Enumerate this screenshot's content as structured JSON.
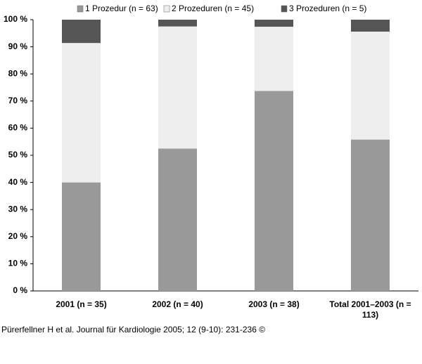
{
  "chart_data": {
    "type": "stacked_bar",
    "categories": [
      "2001 (n = 35)",
      "2002 (n = 40)",
      "2003 (n = 38)",
      "Total 2001–2003 (n = 113)"
    ],
    "series": [
      {
        "name": "1 Prozedur (n = 63)",
        "color": "#999999",
        "values": [
          40,
          52.5,
          73.7,
          55.8
        ]
      },
      {
        "name": "2 Prozeduren (n = 45)",
        "color": "#eeeeee",
        "values": [
          51.4,
          45,
          23.7,
          39.8
        ]
      },
      {
        "name": "3 Prozeduren (n = 5)",
        "color": "#555555",
        "values": [
          8.6,
          2.5,
          2.6,
          4.4
        ]
      }
    ],
    "ylim": [
      0,
      100
    ],
    "yticks": [
      {
        "value": 0,
        "label": "0 %"
      },
      {
        "value": 10,
        "label": "10 %"
      },
      {
        "value": 20,
        "label": "20 %"
      },
      {
        "value": 30,
        "label": "30 %"
      },
      {
        "value": 40,
        "label": "40 %"
      },
      {
        "value": 50,
        "label": "50 %"
      },
      {
        "value": 60,
        "label": "60 %"
      },
      {
        "value": 70,
        "label": "70 %"
      },
      {
        "value": 80,
        "label": "80 %"
      },
      {
        "value": 90,
        "label": "90 %"
      },
      {
        "value": 100,
        "label": "100 %"
      }
    ],
    "legend": "top"
  },
  "source": "Pürerfellner H et al. Journal für Kardiologie 2005; 12 (9-10): 231-236 ©"
}
